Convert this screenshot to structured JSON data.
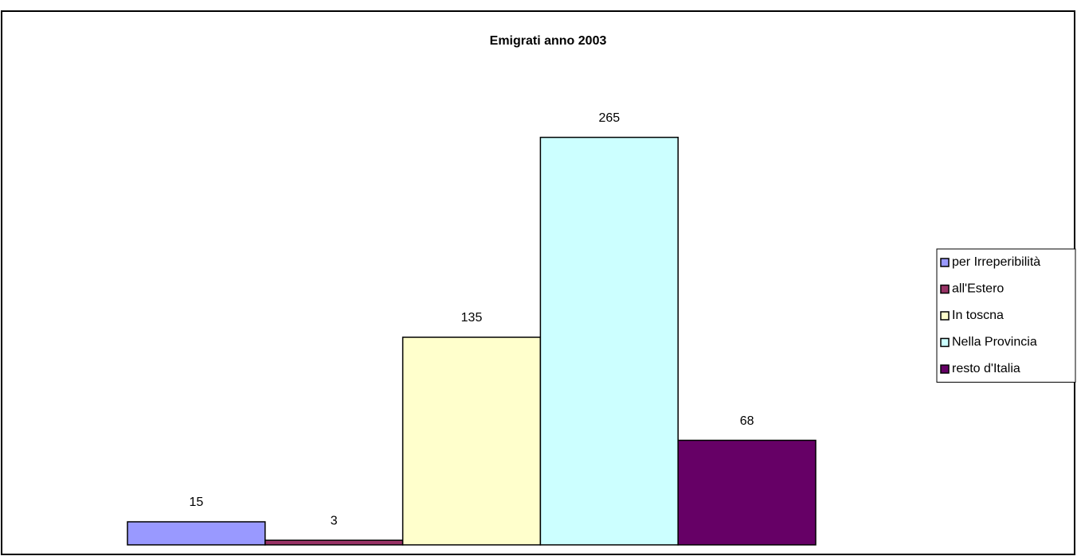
{
  "chart_data": {
    "type": "bar",
    "title": "Emigrati anno 2003",
    "categories": [
      null
    ],
    "series": [
      {
        "name": "per Irreperibilità",
        "color": "#9999ff",
        "values": [
          15
        ]
      },
      {
        "name": "all'Estero",
        "color": "#993366",
        "values": [
          3
        ]
      },
      {
        "name": "In toscna",
        "color": "#ffffcc",
        "values": [
          135
        ]
      },
      {
        "name": "Nella Provincia",
        "color": "#ccffff",
        "values": [
          265
        ]
      },
      {
        "name": "resto d'Italia",
        "color": "#660066",
        "values": [
          68
        ]
      }
    ],
    "ylim": [
      0,
      300
    ],
    "legend": "right",
    "data_labels": true
  }
}
